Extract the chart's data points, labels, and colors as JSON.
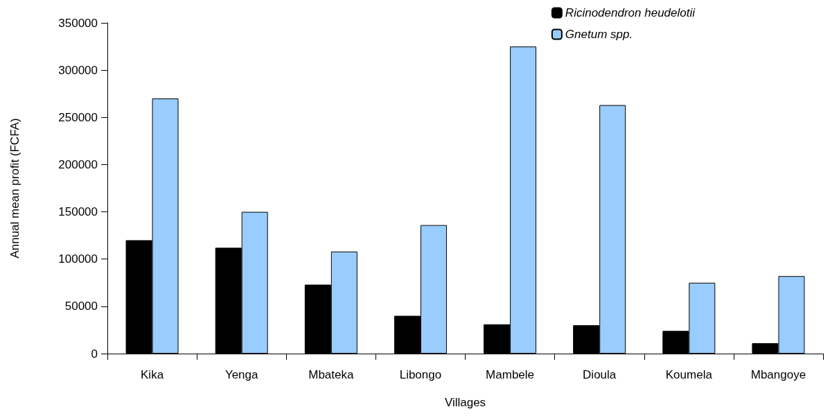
{
  "chart_data": {
    "type": "bar",
    "xlabel": "Villages",
    "ylabel": "Annual mean profit (FCFA)",
    "categories": [
      "Kika",
      "Yenga",
      "Mbateka",
      "Libongo",
      "Mambele",
      "Dioula",
      "Koumela",
      "Mbangoye"
    ],
    "series": [
      {
        "name": "Ricinodendron heudelotii",
        "color": "#000000",
        "values": [
          120000,
          112000,
          73000,
          40000,
          31000,
          30000,
          24000,
          11000
        ]
      },
      {
        "name": "Gnetum spp.",
        "color": "#99ccff",
        "values": [
          270000,
          150000,
          108000,
          136000,
          325000,
          263000,
          75000,
          82000
        ]
      }
    ],
    "ylim": [
      0,
      350000
    ],
    "yticks": [
      0,
      50000,
      100000,
      150000,
      200000,
      250000,
      300000,
      350000
    ],
    "grid": false,
    "legend": "top right"
  }
}
